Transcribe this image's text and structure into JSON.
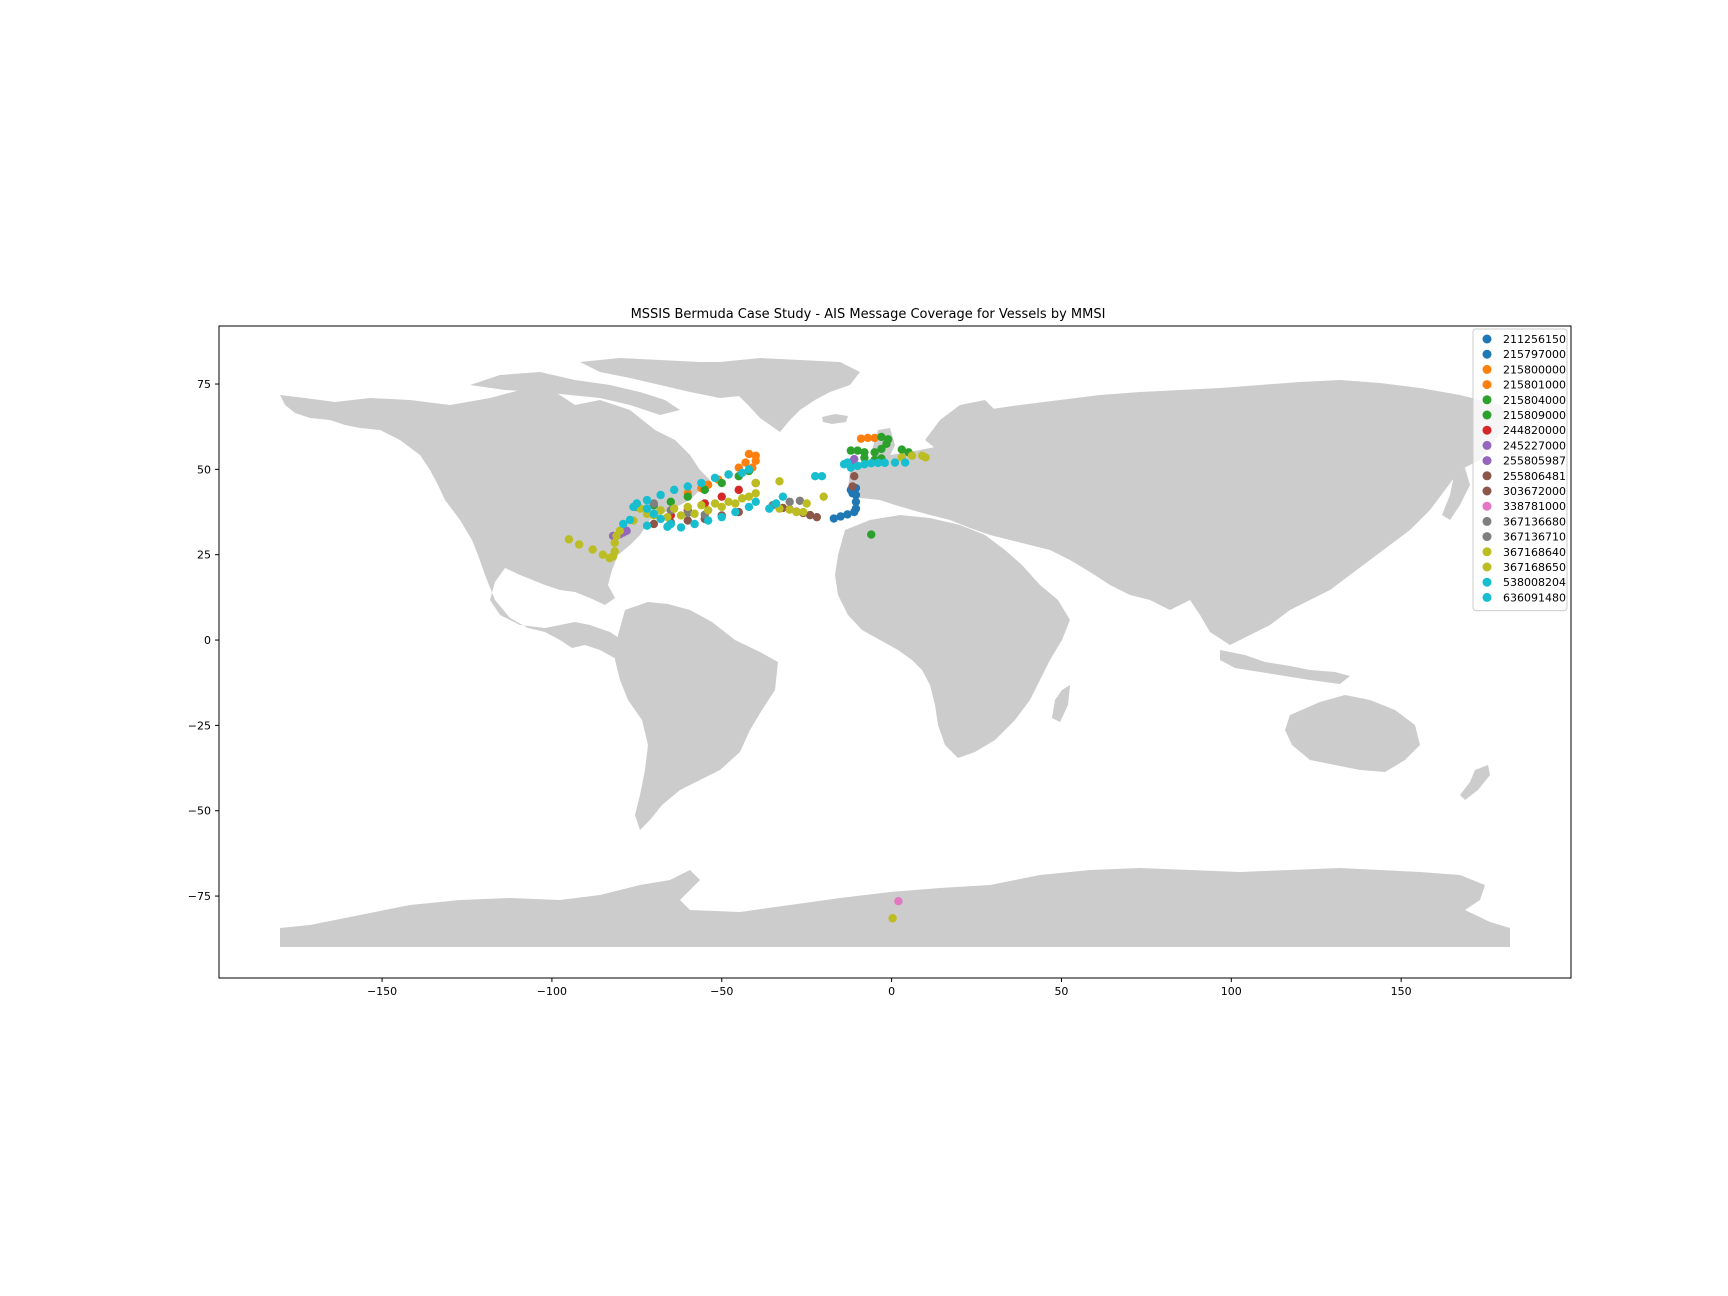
{
  "chart_data": {
    "type": "scatter",
    "title": "MSSIS Bermuda Case Study - AIS Message Coverage for Vessels by MMSI",
    "xlabel": "",
    "ylabel": "",
    "xlim": [
      -198,
      200
    ],
    "ylim": [
      -99,
      92
    ],
    "xticks": [
      -150,
      -100,
      -50,
      0,
      50,
      100,
      150
    ],
    "xtick_labels": [
      "−150",
      "−100",
      "−50",
      "0",
      "50",
      "100",
      "150"
    ],
    "yticks": [
      75,
      50,
      25,
      0,
      -25,
      -50,
      -75
    ],
    "ytick_labels": [
      "75",
      "50",
      "25",
      "0",
      "−25",
      "−50",
      "−75"
    ],
    "grid": false,
    "legend_position": "top-right",
    "land_color": "#cccccc",
    "series": [
      {
        "name": "211256150",
        "color": "#1f77b4",
        "points": [
          [
            -12,
            44
          ],
          [
            -11.5,
            43
          ]
        ]
      },
      {
        "name": "215797000",
        "color": "#1f77b4",
        "points": [
          [
            -10.5,
            44.5
          ],
          [
            -10.5,
            42.5
          ],
          [
            -10.5,
            40.5
          ],
          [
            -10.5,
            38.5
          ],
          [
            -11,
            37.5
          ],
          [
            -13,
            36.8
          ],
          [
            -15,
            36.2
          ],
          [
            -17,
            35.6
          ]
        ]
      },
      {
        "name": "215800000",
        "color": "#ff7f0e",
        "points": [
          [
            -40,
            54
          ],
          [
            -43,
            52
          ],
          [
            -45,
            50.5
          ],
          [
            -48,
            48.5
          ],
          [
            -51,
            47
          ],
          [
            -54,
            45.5
          ]
        ]
      },
      {
        "name": "215801000",
        "color": "#ff7f0e",
        "points": [
          [
            -42,
            54.5
          ],
          [
            -40,
            52.5
          ],
          [
            -41,
            50.5
          ],
          [
            -9,
            59
          ],
          [
            -7,
            59.2
          ],
          [
            -5,
            59.2
          ],
          [
            -56,
            44.5
          ],
          [
            -60,
            43
          ]
        ]
      },
      {
        "name": "215804000",
        "color": "#2ca02c",
        "points": [
          [
            -3,
            59.5
          ],
          [
            -1,
            58.8
          ],
          [
            -1.5,
            57.5
          ],
          [
            -3,
            56
          ],
          [
            -5,
            55
          ],
          [
            -8,
            55
          ],
          [
            -10,
            55.5
          ],
          [
            -12,
            55.5
          ],
          [
            -6,
            30.9
          ]
        ]
      },
      {
        "name": "215809000",
        "color": "#2ca02c",
        "points": [
          [
            -42,
            49.5
          ],
          [
            -45,
            48
          ],
          [
            -50,
            46
          ],
          [
            -55,
            44
          ],
          [
            -60,
            42
          ],
          [
            -65,
            40.5
          ],
          [
            -70,
            39.5
          ],
          [
            -75,
            39
          ],
          [
            -5,
            52.8
          ],
          [
            -3,
            53.2
          ],
          [
            -8,
            53.4
          ],
          [
            3,
            55.8
          ],
          [
            5,
            55
          ]
        ]
      },
      {
        "name": "244820000",
        "color": "#d62728",
        "points": [
          [
            -40,
            46
          ],
          [
            -45,
            44
          ],
          [
            -50,
            42
          ],
          [
            -55,
            40
          ],
          [
            -60,
            38
          ],
          [
            -65,
            36.5
          ]
        ]
      },
      {
        "name": "245227000",
        "color": "#9467bd",
        "points": [
          [
            -12,
            52
          ],
          [
            -11,
            53
          ]
        ]
      },
      {
        "name": "255805987",
        "color": "#9467bd",
        "points": [
          [
            -80,
            31
          ],
          [
            -82,
            30.5
          ],
          [
            -78,
            32
          ],
          [
            -79,
            31.5
          ]
        ]
      },
      {
        "name": "255806481",
        "color": "#8c564b",
        "points": [
          [
            -22,
            36
          ],
          [
            -24,
            36.6
          ],
          [
            -26,
            37.2
          ],
          [
            -28,
            37.6
          ],
          [
            -30,
            38.3
          ],
          [
            -32,
            38.7
          ],
          [
            -11.5,
            45
          ],
          [
            -11,
            48
          ]
        ]
      },
      {
        "name": "303672000",
        "color": "#8c564b",
        "points": [
          [
            -45,
            37.5
          ],
          [
            -50,
            36.5
          ],
          [
            -55,
            35.5
          ],
          [
            -60,
            35
          ],
          [
            -65,
            34.5
          ],
          [
            -70,
            34
          ]
        ]
      },
      {
        "name": "338781000",
        "color": "#e377c2",
        "points": [
          [
            2,
            -76.5
          ]
        ]
      },
      {
        "name": "367136680",
        "color": "#7f7f7f",
        "points": [
          [
            -70,
            40
          ],
          [
            -65,
            38
          ],
          [
            -60,
            37.2
          ],
          [
            -55,
            36.7
          ]
        ]
      },
      {
        "name": "367136710",
        "color": "#7f7f7f",
        "points": [
          [
            -35,
            39.5
          ],
          [
            -30,
            40.5
          ],
          [
            -27,
            40.8
          ]
        ]
      },
      {
        "name": "367168640",
        "color": "#bcbd22",
        "points": [
          [
            -95,
            29.5
          ],
          [
            -92,
            28
          ],
          [
            -88,
            26.5
          ],
          [
            -85,
            25
          ],
          [
            -83,
            24
          ],
          [
            -82,
            24.5
          ],
          [
            -81.5,
            26
          ],
          [
            -81.5,
            28.5
          ],
          [
            -81,
            30.5
          ],
          [
            -80,
            32
          ],
          [
            -76,
            35
          ],
          [
            -72,
            37
          ],
          [
            -68,
            38
          ],
          [
            -64,
            38.5
          ],
          [
            -60,
            39
          ],
          [
            -56,
            39.5
          ],
          [
            -52,
            40
          ],
          [
            -48,
            40.5
          ],
          [
            -44,
            41.5
          ],
          [
            -40,
            43
          ],
          [
            -40,
            46
          ]
        ]
      },
      {
        "name": "367168650",
        "color": "#bcbd22",
        "points": [
          [
            -74,
            38.5
          ],
          [
            -70,
            36.5
          ],
          [
            -66,
            36
          ],
          [
            -62,
            36.5
          ],
          [
            -58,
            37
          ],
          [
            -54,
            38
          ],
          [
            -50,
            39
          ],
          [
            -46,
            40
          ],
          [
            -42,
            42
          ],
          [
            -33,
            46.5
          ],
          [
            -33,
            38.5
          ],
          [
            -30,
            38.2
          ],
          [
            -28,
            37.5
          ],
          [
            -26,
            37.5
          ],
          [
            -20,
            42
          ],
          [
            -25,
            40
          ],
          [
            3,
            53.5
          ],
          [
            6,
            54
          ],
          [
            9,
            54
          ],
          [
            10,
            53.5
          ],
          [
            0.3,
            -81.5
          ]
        ]
      },
      {
        "name": "538008204",
        "color": "#17becf",
        "points": [
          [
            -75,
            40
          ],
          [
            -72,
            38.5
          ],
          [
            -70,
            37
          ],
          [
            -68,
            35.5
          ],
          [
            -65,
            34
          ],
          [
            -62,
            33
          ],
          [
            -58,
            34
          ],
          [
            -54,
            35
          ],
          [
            -50,
            36
          ],
          [
            -46,
            37.5
          ],
          [
            -42,
            39
          ],
          [
            -40,
            40.5
          ],
          [
            -32,
            42
          ],
          [
            -22.5,
            48
          ],
          [
            -20.5,
            48
          ]
        ]
      },
      {
        "name": "636091480",
        "color": "#17becf",
        "points": [
          [
            -76,
            39
          ],
          [
            -72,
            41
          ],
          [
            -68,
            42.5
          ],
          [
            -64,
            44
          ],
          [
            -60,
            45
          ],
          [
            -56,
            46
          ],
          [
            -52,
            47.5
          ],
          [
            -48,
            48.5
          ],
          [
            -44,
            49
          ],
          [
            -42,
            50
          ],
          [
            -12,
            50.5
          ],
          [
            -10,
            51
          ],
          [
            -8,
            51.5
          ],
          [
            -6,
            51.8
          ],
          [
            -4,
            51.9
          ],
          [
            -2,
            51.9
          ],
          [
            1,
            52
          ],
          [
            4,
            52
          ],
          [
            -14,
            51.5
          ],
          [
            -13,
            52
          ],
          [
            -34,
            40
          ],
          [
            -36,
            38.5
          ],
          [
            -79,
            34
          ],
          [
            -77,
            35.2
          ],
          [
            -72,
            33.5
          ],
          [
            -66,
            33.2
          ]
        ]
      }
    ]
  }
}
